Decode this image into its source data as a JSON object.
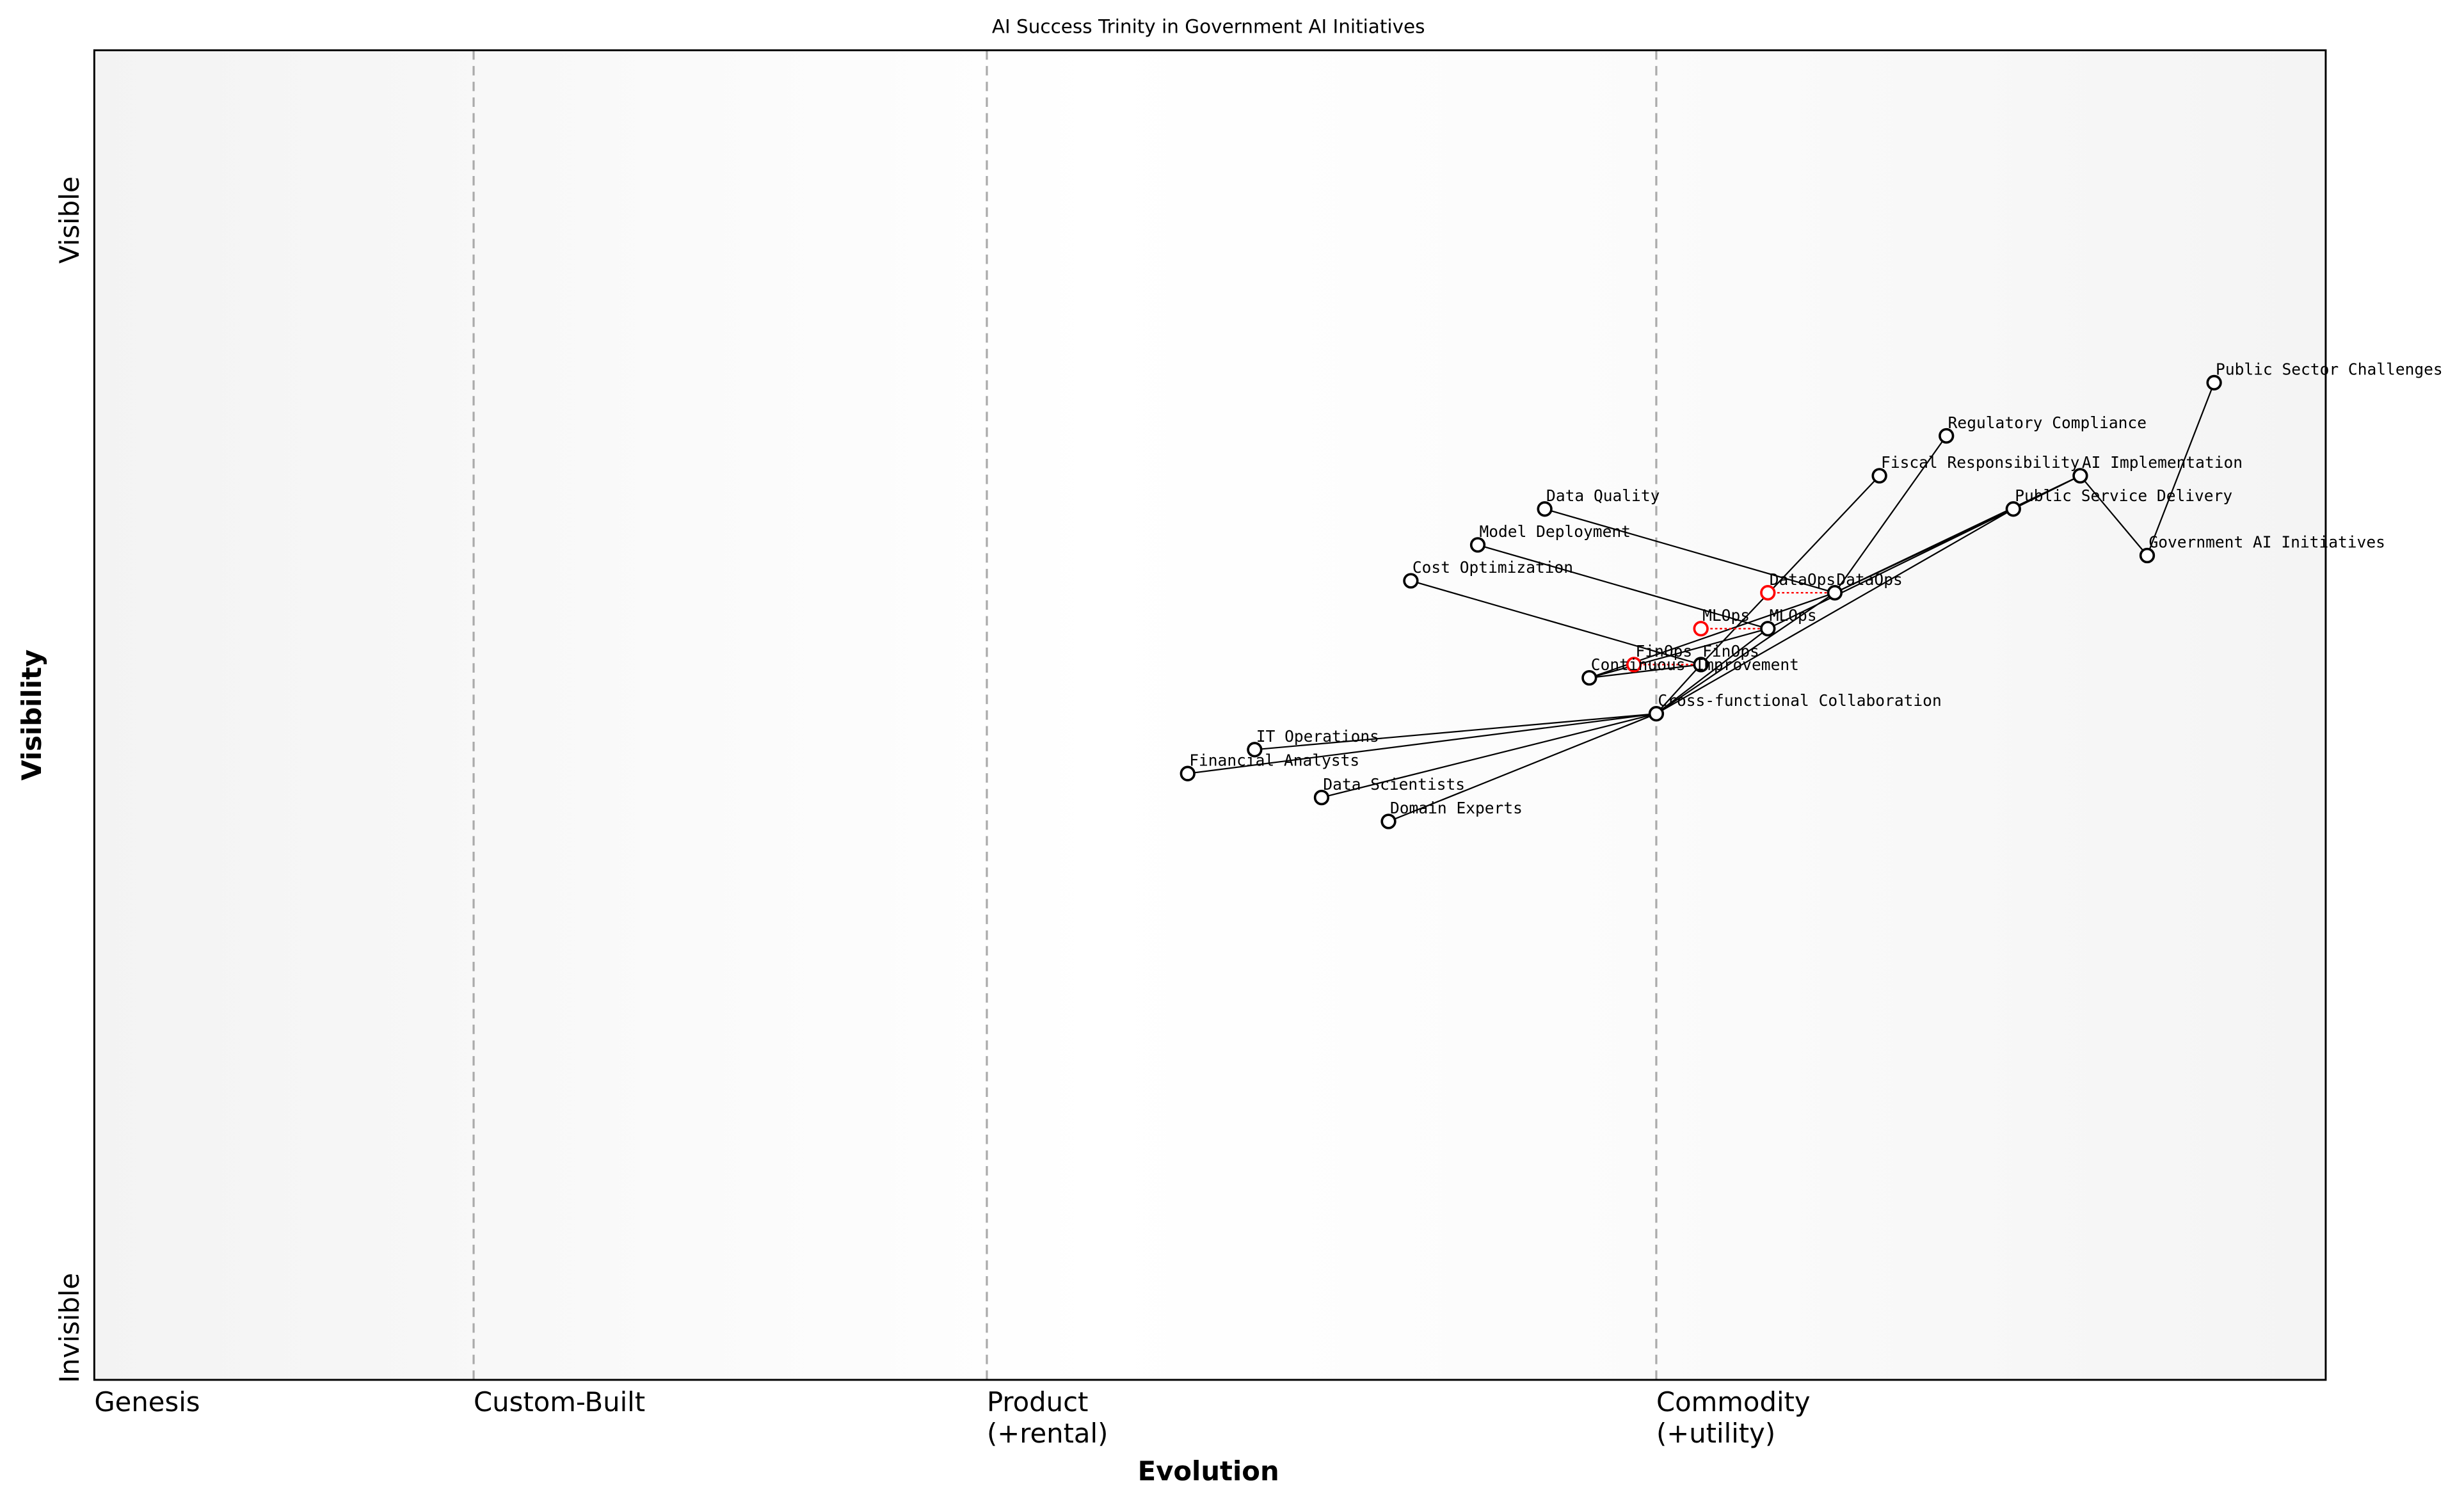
{
  "title": "AI Success Trinity in Government AI Initiatives",
  "x_axis": {
    "label": "Evolution",
    "stages": [
      {
        "line1": "Genesis",
        "line2": "",
        "evolution": 0.0
      },
      {
        "line1": "Custom-Built",
        "line2": "",
        "evolution": 0.17
      },
      {
        "line1": "Product",
        "line2": "(+rental)",
        "evolution": 0.4
      },
      {
        "line1": "Commodity",
        "line2": "(+utility)",
        "evolution": 0.7
      }
    ]
  },
  "y_axis": {
    "label": "Visibility",
    "top": "Visible",
    "bottom": "Invisible"
  },
  "colors": {
    "node_stroke": "#000000",
    "inertia": "#ff0000",
    "divider": "#aaaaaa",
    "edge_band": "#f4f4f4",
    "center_band": "#ffffff"
  },
  "components": [
    {
      "name": "Public Sector Challenges",
      "evolution": 0.95,
      "visibility": 0.75
    },
    {
      "name": "Regulatory Compliance",
      "evolution": 0.83,
      "visibility": 0.71
    },
    {
      "name": "Fiscal Responsibility",
      "evolution": 0.8,
      "visibility": 0.68
    },
    {
      "name": "AI Implementation",
      "evolution": 0.89,
      "visibility": 0.68
    },
    {
      "name": "Public Service Delivery",
      "evolution": 0.86,
      "visibility": 0.655
    },
    {
      "name": "Government AI Initiatives",
      "evolution": 0.92,
      "visibility": 0.62
    },
    {
      "name": "Data Quality",
      "evolution": 0.65,
      "visibility": 0.655
    },
    {
      "name": "Model Deployment",
      "evolution": 0.62,
      "visibility": 0.628
    },
    {
      "name": "Cost Optimization",
      "evolution": 0.59,
      "visibility": 0.601
    },
    {
      "name": "DataOps",
      "evolution": 0.78,
      "visibility": 0.592
    },
    {
      "name": "MLOps",
      "evolution": 0.75,
      "visibility": 0.565
    },
    {
      "name": "FinOps",
      "evolution": 0.72,
      "visibility": 0.538
    },
    {
      "name": "Continuous Improvement",
      "evolution": 0.67,
      "visibility": 0.528
    },
    {
      "name": "Cross-functional Collaboration",
      "evolution": 0.7,
      "visibility": 0.501
    },
    {
      "name": "IT Operations",
      "evolution": 0.52,
      "visibility": 0.474
    },
    {
      "name": "Financial Analysts",
      "evolution": 0.49,
      "visibility": 0.456
    },
    {
      "name": "Data Scientists",
      "evolution": 0.55,
      "visibility": 0.438
    },
    {
      "name": "Domain Experts",
      "evolution": 0.58,
      "visibility": 0.42
    }
  ],
  "inertia": [
    {
      "name": "DataOps",
      "from_evolution": 0.75,
      "to_component": "DataOps"
    },
    {
      "name": "MLOps",
      "from_evolution": 0.72,
      "to_component": "MLOps"
    },
    {
      "name": "FinOps",
      "from_evolution": 0.69,
      "to_component": "FinOps"
    }
  ],
  "links": [
    [
      "Government AI Initiatives",
      "Public Sector Challenges"
    ],
    [
      "Government AI Initiatives",
      "AI Implementation"
    ],
    [
      "AI Implementation",
      "Public Service Delivery"
    ],
    [
      "AI Implementation",
      "DataOps"
    ],
    [
      "Public Service Delivery",
      "DataOps"
    ],
    [
      "Public Service Delivery",
      "MLOps"
    ],
    [
      "Public Service Delivery",
      "Cross-functional Collaboration"
    ],
    [
      "Regulatory Compliance",
      "DataOps"
    ],
    [
      "Fiscal Responsibility",
      "FinOps"
    ],
    [
      "FinOps",
      "Cross-functional Collaboration"
    ],
    [
      "Data Quality",
      "DataOps"
    ],
    [
      "Model Deployment",
      "MLOps"
    ],
    [
      "Cost Optimization",
      "FinOps"
    ],
    [
      "DataOps",
      "Continuous Improvement"
    ],
    [
      "MLOps",
      "Continuous Improvement"
    ],
    [
      "FinOps",
      "Continuous Improvement"
    ],
    [
      "DataOps",
      "Cross-functional Collaboration"
    ],
    [
      "MLOps",
      "Cross-functional Collaboration"
    ],
    [
      "Cross-functional Collaboration",
      "IT Operations"
    ],
    [
      "Cross-functional Collaboration",
      "Financial Analysts"
    ],
    [
      "Cross-functional Collaboration",
      "Data Scientists"
    ],
    [
      "Cross-functional Collaboration",
      "Domain Experts"
    ]
  ]
}
